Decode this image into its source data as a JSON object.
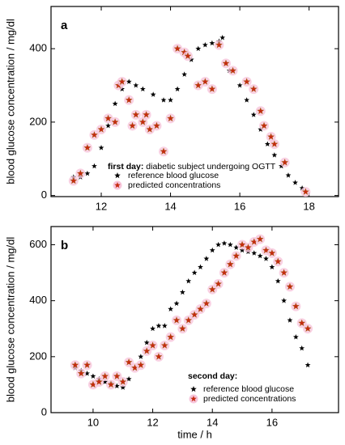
{
  "chart_data": [
    {
      "type": "scatter",
      "panel_label": "a",
      "ylabel": "blood glucose concentration  /  mg/dl",
      "legend_title": "first day:",
      "description": "diabetic subject undergoing OGTT",
      "xlim": [
        10.55,
        18.85
      ],
      "xticks": [
        12,
        14,
        16,
        18
      ],
      "ylim": [
        -3,
        515
      ],
      "yticks": [
        0,
        200,
        400
      ],
      "series": [
        {
          "name": "reference blood glucose",
          "color": "#000000",
          "x": [
            11.2,
            11.4,
            11.6,
            11.8,
            12.0,
            12.2,
            12.4,
            12.6,
            12.8,
            13.0,
            13.2,
            13.5,
            13.8,
            14.0,
            14.2,
            14.4,
            14.6,
            14.8,
            15.0,
            15.2,
            15.4,
            15.5,
            15.7,
            16.0,
            16.2,
            16.4,
            16.6,
            16.8,
            17.0,
            17.2,
            17.4,
            17.6,
            17.8
          ],
          "values": [
            50,
            50,
            60,
            80,
            130,
            190,
            250,
            290,
            310,
            300,
            290,
            275,
            260,
            260,
            290,
            330,
            370,
            400,
            410,
            415,
            420,
            430,
            340,
            300,
            260,
            220,
            180,
            140,
            110,
            80,
            55,
            35,
            20
          ]
        },
        {
          "name": "predicted concentrations",
          "color": "#c62a10",
          "x": [
            11.2,
            11.4,
            11.6,
            11.8,
            12.0,
            12.2,
            12.4,
            12.5,
            12.6,
            12.8,
            12.9,
            13.0,
            13.2,
            13.3,
            13.4,
            13.6,
            13.8,
            14.0,
            14.2,
            14.4,
            14.5,
            14.8,
            15.0,
            15.2,
            15.4,
            15.6,
            15.8,
            16.2,
            16.4,
            16.6,
            16.7,
            16.9,
            17.0,
            17.3,
            17.9
          ],
          "values": [
            40,
            60,
            130,
            165,
            180,
            210,
            200,
            300,
            310,
            260,
            190,
            220,
            200,
            220,
            180,
            190,
            120,
            210,
            400,
            390,
            380,
            300,
            310,
            290,
            410,
            360,
            340,
            310,
            290,
            230,
            190,
            160,
            140,
            90,
            10
          ]
        }
      ]
    },
    {
      "type": "scatter",
      "panel_label": "b",
      "ylabel": "blood glucose concentration  /  mg/dl",
      "xlabel": "time  /  h",
      "legend_title": "second day:",
      "xlim": [
        8.59,
        18.23
      ],
      "xticks": [
        10,
        12,
        14,
        16
      ],
      "ylim": [
        0,
        665
      ],
      "yticks": [
        0,
        200,
        400,
        600
      ],
      "series": [
        {
          "name": "reference blood glucose",
          "color": "#000000",
          "x": [
            9.4,
            9.6,
            9.8,
            10.0,
            10.2,
            10.4,
            10.6,
            10.8,
            11.0,
            11.2,
            11.4,
            11.6,
            11.8,
            12.0,
            12.2,
            12.4,
            12.6,
            12.8,
            13.0,
            13.2,
            13.4,
            13.6,
            13.8,
            14.0,
            14.2,
            14.4,
            14.6,
            14.8,
            15.0,
            15.2,
            15.4,
            15.6,
            15.8,
            16.0,
            16.2,
            16.4,
            16.6,
            16.8,
            17.0,
            17.2
          ],
          "values": [
            160,
            150,
            140,
            130,
            120,
            110,
            105,
            95,
            90,
            120,
            160,
            200,
            250,
            300,
            310,
            310,
            370,
            390,
            430,
            470,
            500,
            520,
            550,
            580,
            600,
            605,
            600,
            590,
            580,
            575,
            570,
            560,
            550,
            520,
            470,
            400,
            330,
            270,
            230,
            170
          ]
        },
        {
          "name": "predicted concentrations",
          "color": "#c62a10",
          "x": [
            9.4,
            9.6,
            9.8,
            10.0,
            10.2,
            10.4,
            10.6,
            10.8,
            11.0,
            11.2,
            11.4,
            11.6,
            11.8,
            12.0,
            12.2,
            12.4,
            12.6,
            12.8,
            13.0,
            13.2,
            13.4,
            13.6,
            13.8,
            14.0,
            14.2,
            14.4,
            14.6,
            14.8,
            15.0,
            15.2,
            15.4,
            15.6,
            15.8,
            16.0,
            16.2,
            16.4,
            16.6,
            16.8,
            17.0,
            17.2
          ],
          "values": [
            170,
            140,
            170,
            100,
            110,
            130,
            100,
            130,
            110,
            180,
            160,
            170,
            220,
            240,
            200,
            240,
            270,
            330,
            300,
            330,
            350,
            370,
            390,
            440,
            460,
            500,
            530,
            560,
            600,
            590,
            610,
            620,
            580,
            570,
            540,
            500,
            450,
            380,
            320,
            300
          ]
        }
      ]
    }
  ]
}
